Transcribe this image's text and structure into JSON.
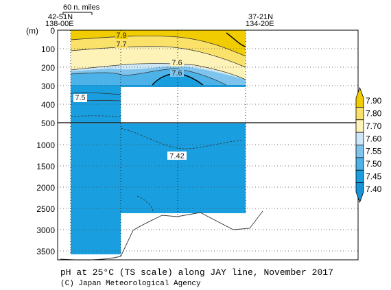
{
  "chart_data": {
    "type": "heatmap",
    "title": "pH at 25°C (TS scale) along JAY line, November 2017",
    "credit": "(C) Japan Meteorological Agency",
    "ylabel": "(m)",
    "scale_label": "60 n. miles",
    "station_left": {
      "lat": "42-51N",
      "lon": "138-00E"
    },
    "station_right": {
      "lat": "37-21N",
      "lon": "134-20E"
    },
    "y_ticks_upper": [
      "0",
      "100",
      "200",
      "300",
      "400",
      "500"
    ],
    "y_ticks_lower": [
      "1000",
      "1500",
      "2000",
      "2500",
      "3000",
      "3500"
    ],
    "ylim_upper": [
      0,
      500
    ],
    "ylim_lower": [
      500,
      3800
    ],
    "contour_labels": [
      "7.9",
      "7.7",
      "7.6",
      "7.6",
      "7.5",
      "7.42"
    ],
    "colorbar": {
      "levels": [
        "7.90",
        "7.80",
        "7.70",
        "7.60",
        "7.55",
        "7.50",
        "7.45",
        "7.40"
      ],
      "colors": [
        "#f1cc00",
        "#fae26a",
        "#fdf3b8",
        "#cfe8f7",
        "#7ec4ec",
        "#4db2e8",
        "#199fe0",
        "#1793d6"
      ]
    }
  }
}
